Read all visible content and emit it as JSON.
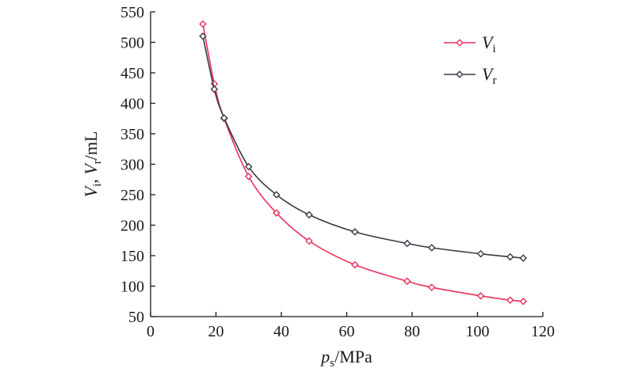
{
  "chart_data": {
    "type": "line",
    "title": "",
    "xlabel": {
      "main": "p",
      "sub": "s",
      "unit": "/MPa"
    },
    "ylabel": {
      "a_main": "V",
      "a_sub": "i",
      "sep": ", ",
      "b_main": "V",
      "b_sub": "r",
      "unit": "/mL"
    },
    "xlim": [
      0,
      120
    ],
    "ylim": [
      50,
      550
    ],
    "xticks": [
      0,
      20,
      40,
      60,
      80,
      100,
      120
    ],
    "yticks": [
      50,
      100,
      150,
      200,
      250,
      300,
      350,
      400,
      450,
      500,
      550
    ],
    "grid": false,
    "legend_position": "top-right",
    "series": [
      {
        "name_main": "V",
        "name_sub": "i",
        "color": "#e8305a",
        "marker": "diamond",
        "x": [
          16,
          19.5,
          22.5,
          30,
          38.5,
          48.5,
          62.5,
          78.5,
          86,
          101,
          110,
          114
        ],
        "y": [
          530,
          432,
          375,
          280,
          220,
          174,
          135,
          108,
          98,
          84,
          77,
          75
        ]
      },
      {
        "name_main": "V",
        "name_sub": "r",
        "color": "#3a3a48",
        "marker": "diamond",
        "x": [
          16,
          19.5,
          22.5,
          30,
          38.5,
          48.5,
          62.5,
          78.5,
          86,
          101,
          110,
          114
        ],
        "y": [
          510,
          423,
          376,
          296,
          250,
          217,
          189,
          170,
          163,
          153,
          148,
          146
        ]
      }
    ]
  }
}
